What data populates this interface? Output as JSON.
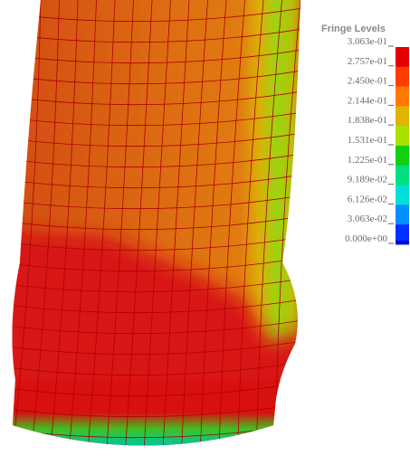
{
  "legend": {
    "title": "Fringe Levels",
    "levels": [
      "3.063e-01",
      "2.757e-01",
      "2.450e-01",
      "2.144e-01",
      "1.838e-01",
      "1.531e-01",
      "1.225e-01",
      "9.189e-02",
      "6.126e-02",
      "3.063e-02",
      "0.000e+00"
    ],
    "colors": [
      "#e60000",
      "#ff3c00",
      "#ff7800",
      "#e0b400",
      "#a8e000",
      "#10d010",
      "#00e080",
      "#00e0d8",
      "#0090ff",
      "#0030ff"
    ],
    "bottom_color": "#0000dc"
  }
}
